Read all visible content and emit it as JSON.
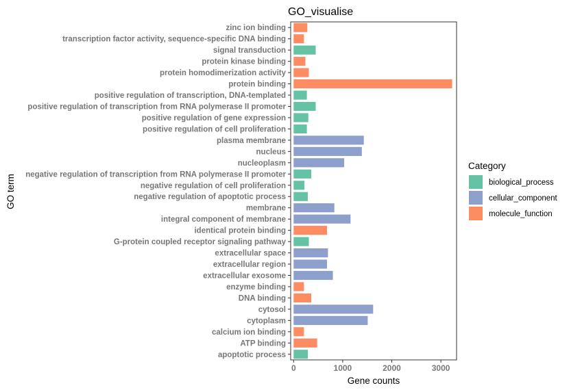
{
  "chart_data": {
    "type": "bar",
    "orientation": "horizontal",
    "title": "GO_visualise",
    "xlabel": "Gene counts",
    "ylabel": "GO term",
    "xlim": [
      -60,
      3320
    ],
    "xticks": [
      0,
      1000,
      2000,
      3000
    ],
    "grid": false,
    "legend": {
      "title": "Category",
      "placement": "right",
      "entries": [
        {
          "name": "biological_process",
          "color": "#66C2A5"
        },
        {
          "name": "cellular_component",
          "color": "#8DA0CB"
        },
        {
          "name": "molecule_function",
          "color": "#FC8D62"
        }
      ]
    },
    "categories": [
      "zinc ion binding",
      "transcription factor activity, sequence-specific DNA binding",
      "signal transduction",
      "protein kinase binding",
      "protein homodimerization activity",
      "protein binding",
      "positive regulation of transcription, DNA-templated",
      "positive regulation of transcription from RNA polymerase II promoter",
      "positive regulation of gene expression",
      "positive regulation of cell proliferation",
      "plasma membrane",
      "nucleus",
      "nucleoplasm",
      "negative regulation of transcription from RNA polymerase II promoter",
      "negative regulation of cell proliferation",
      "negative regulation of apoptotic process",
      "membrane",
      "integral component of membrane",
      "identical protein binding",
      "G-protein coupled receptor signaling pathway",
      "extracellular space",
      "extracellular region",
      "extracellular exosome",
      "enzyme binding",
      "DNA binding",
      "cytosol",
      "cytoplasm",
      "calcium ion binding",
      "ATP binding",
      "apoptotic process"
    ],
    "values": [
      280,
      210,
      450,
      240,
      310,
      3230,
      270,
      450,
      300,
      270,
      1430,
      1390,
      1030,
      360,
      220,
      290,
      830,
      1160,
      680,
      310,
      700,
      680,
      800,
      210,
      360,
      1620,
      1510,
      210,
      480,
      290
    ],
    "series_of_category": [
      "molecule_function",
      "molecule_function",
      "biological_process",
      "molecule_function",
      "molecule_function",
      "molecule_function",
      "biological_process",
      "biological_process",
      "biological_process",
      "biological_process",
      "cellular_component",
      "cellular_component",
      "cellular_component",
      "biological_process",
      "biological_process",
      "biological_process",
      "cellular_component",
      "cellular_component",
      "molecule_function",
      "biological_process",
      "cellular_component",
      "cellular_component",
      "cellular_component",
      "molecule_function",
      "molecule_function",
      "cellular_component",
      "cellular_component",
      "molecule_function",
      "molecule_function",
      "biological_process"
    ]
  }
}
